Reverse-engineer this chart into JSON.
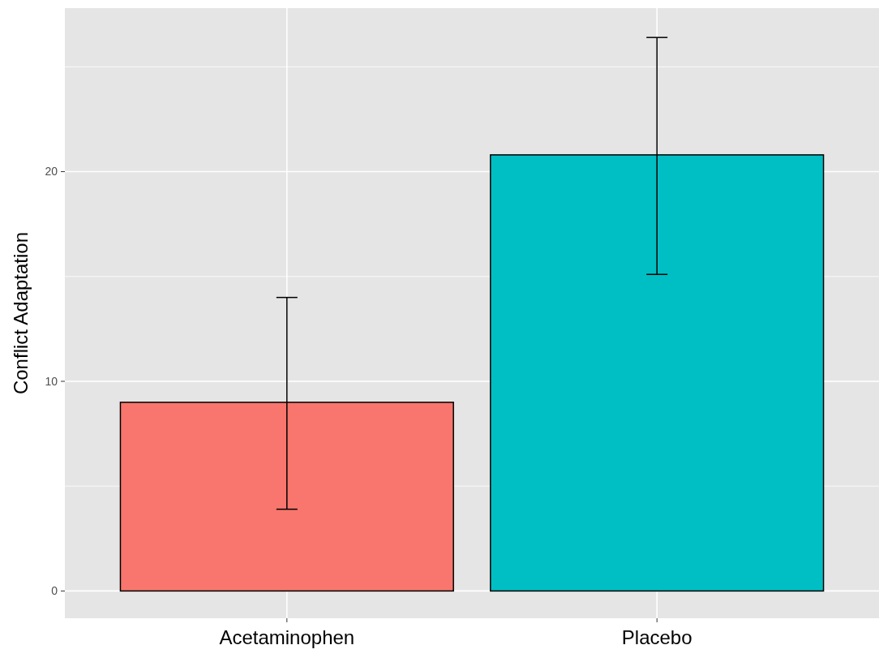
{
  "chart_data": {
    "type": "bar",
    "ylabel": "Conflict Adaptation",
    "categories": [
      "Acetaminophen",
      "Placebo"
    ],
    "values": [
      9.0,
      20.8
    ],
    "colors": [
      "#f8766d",
      "#00bfc4"
    ],
    "errors": [
      [
        3.9,
        14.0
      ],
      [
        15.1,
        26.4
      ]
    ],
    "ylim": [
      -1.3,
      27.8
    ],
    "yticks": [
      0,
      {
        "value": 5,
        "label": null
      },
      10,
      {
        "value": 15,
        "label": null
      },
      20,
      {
        "value": 25,
        "label": null
      }
    ],
    "grid": true
  }
}
